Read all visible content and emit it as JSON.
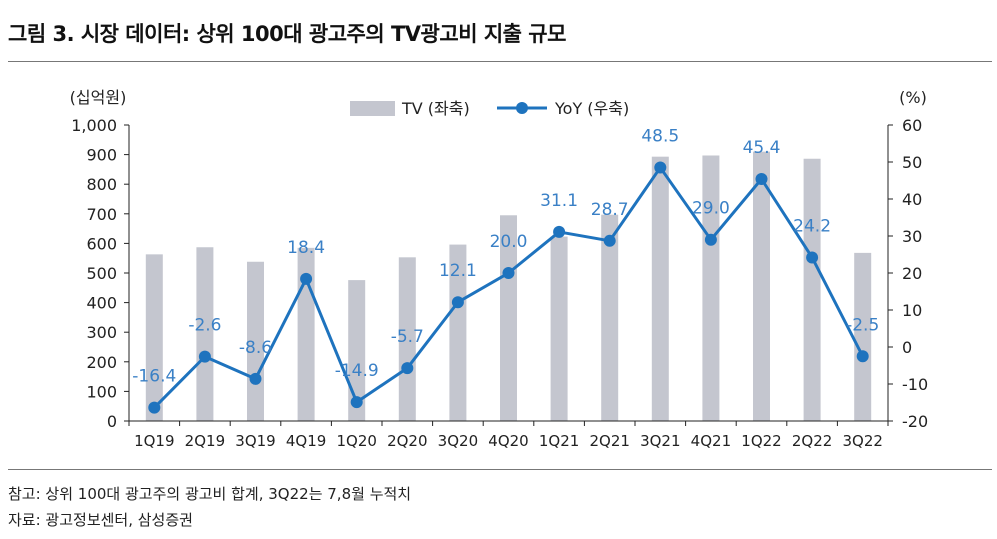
{
  "title": "그림 3. 시장 데이터: 상위 100대 광고주의 TV광고비 지출 규모",
  "notes": {
    "note": "참고: 상위 100대 광고주의 광고비 합계, 3Q22는 7,8월 누적치",
    "source": "자료: 광고정보센터, 삼성증권"
  },
  "colors": {
    "bar": "#c4c6cf",
    "line": "#1e73be",
    "label": "#3a80c6",
    "axis": "#222222"
  },
  "chart_data": {
    "type": "bar+line",
    "categories": [
      "1Q19",
      "2Q19",
      "3Q19",
      "4Q19",
      "1Q20",
      "2Q20",
      "3Q20",
      "4Q20",
      "1Q21",
      "2Q21",
      "3Q21",
      "4Q21",
      "1Q22",
      "2Q22",
      "3Q22"
    ],
    "series": [
      {
        "name": "TV (좌축)",
        "type": "bar",
        "axis": "left",
        "values": [
          563,
          587,
          538,
          585,
          476,
          553,
          596,
          695,
          623,
          697,
          893,
          897,
          910,
          886,
          568
        ]
      },
      {
        "name": "YoY (우축)",
        "type": "line",
        "axis": "right",
        "values": [
          -16.4,
          -2.6,
          -8.6,
          18.4,
          -14.9,
          -5.7,
          12.1,
          20.0,
          31.1,
          28.7,
          48.5,
          29.0,
          45.4,
          24.2,
          -2.5
        ],
        "labels": [
          "-16.4",
          "-2.6",
          "-8.6",
          "18.4",
          "-14.9",
          "-5.7",
          "12.1",
          "20.0",
          "31.1",
          "28.7",
          "48.5",
          "29.0",
          "45.4",
          "24.2",
          "-2.5"
        ]
      }
    ],
    "y_left": {
      "unit": "(십억원)",
      "min": 0,
      "max": 1000,
      "ticks": [
        "0",
        "100",
        "200",
        "300",
        "400",
        "500",
        "600",
        "700",
        "800",
        "900",
        "1,000"
      ]
    },
    "y_right": {
      "unit": "(%)",
      "min": -20,
      "max": 60,
      "ticks": [
        "-20",
        "-10",
        "0",
        "10",
        "20",
        "30",
        "40",
        "50",
        "60"
      ]
    },
    "legend_position": "top-center",
    "grid": false
  }
}
